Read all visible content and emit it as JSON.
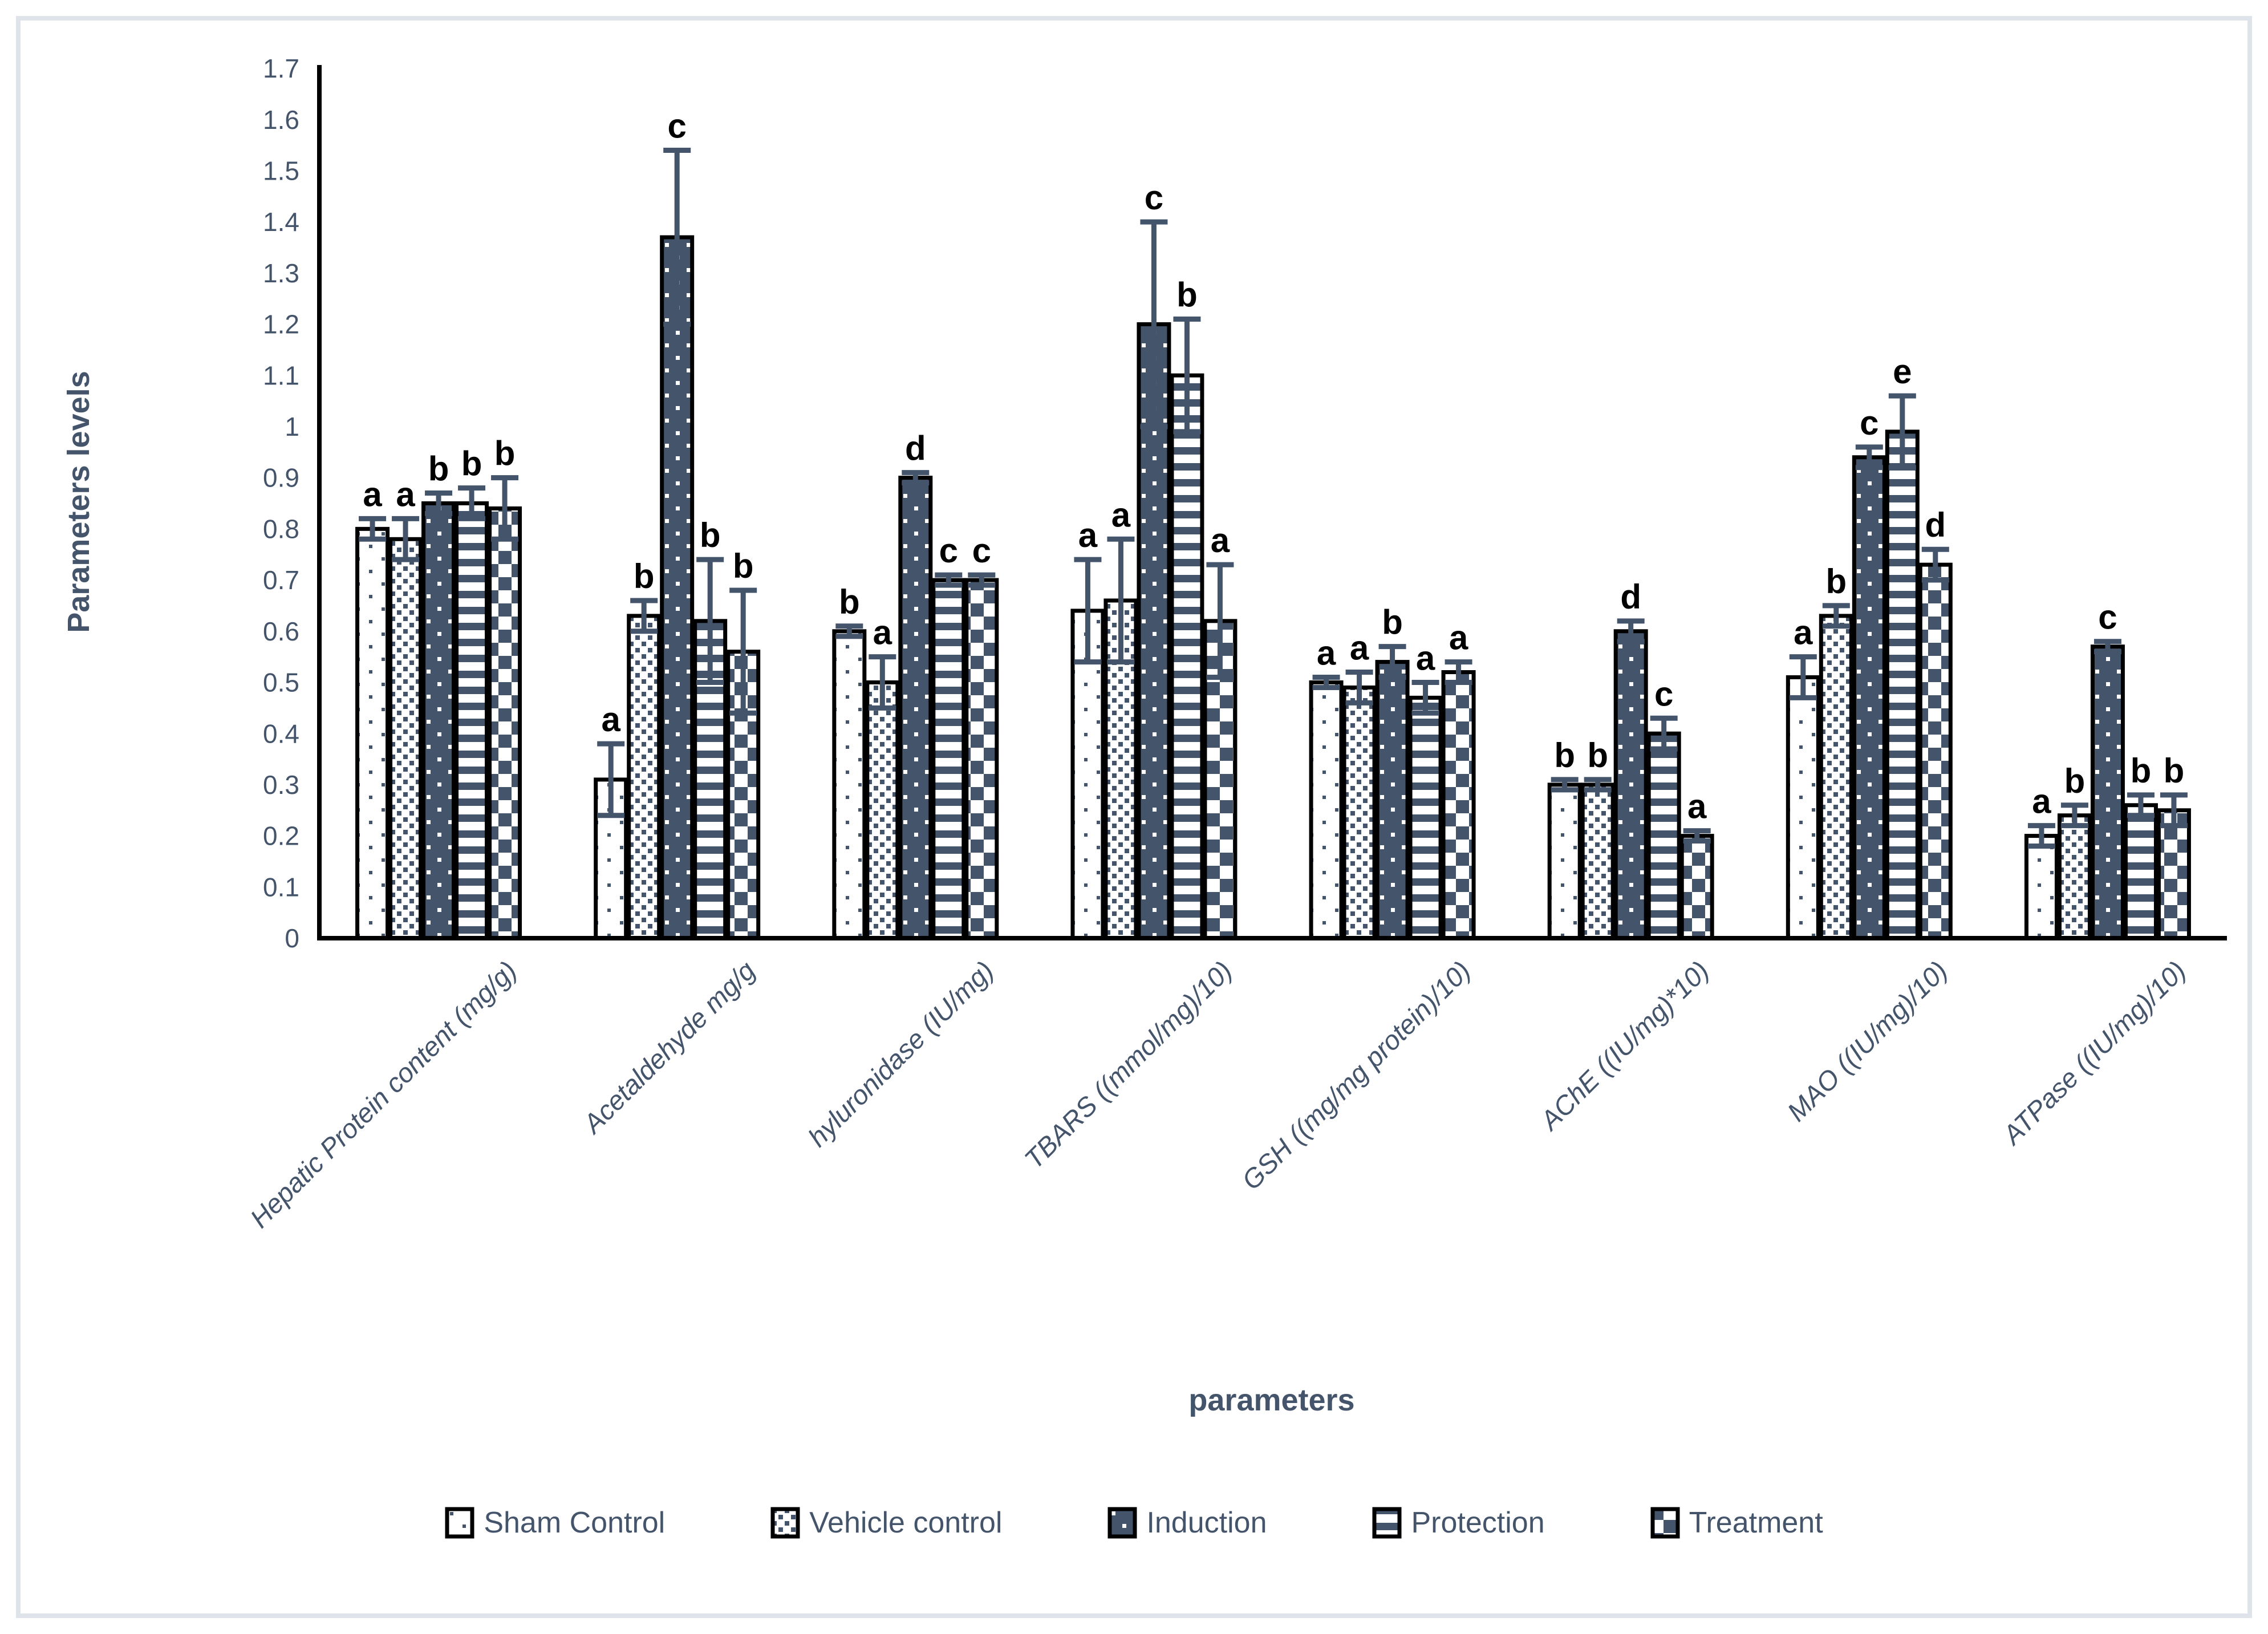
{
  "chart_data": {
    "type": "bar",
    "title": "",
    "xlabel": "parameters",
    "ylabel": "Parameters levels",
    "ylim": [
      0,
      1.7
    ],
    "ytick_step": 0.1,
    "grid": false,
    "legend_position": "bottom",
    "categories": [
      "Hepatic Protein content (mg/g)",
      "Acetaldehyde mg/g",
      "hyluronidase (IU/mg)",
      "TBARS ((mmol/mg)/10)",
      "GSH ((mg/mg protein)/10)",
      "AChE ((IU/mg)*10)",
      "MAO ((IU/mg)/10)",
      "ATPase ((IU/mg)/10)"
    ],
    "series": [
      {
        "name": "Sham Control",
        "pattern": "sparse-dots-on-white",
        "values": [
          0.8,
          0.31,
          0.6,
          0.64,
          0.5,
          0.3,
          0.51,
          0.2
        ],
        "errors": [
          0.02,
          0.07,
          0.01,
          0.1,
          0.01,
          0.01,
          0.04,
          0.02
        ],
        "letters": [
          "a",
          "a",
          "b",
          "a",
          "a",
          "b",
          "a",
          "a"
        ]
      },
      {
        "name": "Vehicle control",
        "pattern": "dense-dot-grid-on-white",
        "values": [
          0.78,
          0.63,
          0.5,
          0.66,
          0.49,
          0.3,
          0.63,
          0.24
        ],
        "errors": [
          0.04,
          0.03,
          0.05,
          0.12,
          0.03,
          0.01,
          0.02,
          0.02
        ],
        "letters": [
          "a",
          "b",
          "a",
          "a",
          "a",
          "b",
          "b",
          "b"
        ]
      },
      {
        "name": "Induction",
        "pattern": "white-dots-on-dark",
        "values": [
          0.85,
          1.37,
          0.9,
          1.2,
          0.54,
          0.6,
          0.94,
          0.57
        ],
        "errors": [
          0.02,
          0.17,
          0.01,
          0.2,
          0.03,
          0.02,
          0.02,
          0.01
        ],
        "letters": [
          "b",
          "c",
          "d",
          "c",
          "b",
          "d",
          "c",
          "c"
        ]
      },
      {
        "name": "Protection",
        "pattern": "horizontal-stripes",
        "values": [
          0.85,
          0.62,
          0.7,
          1.1,
          0.47,
          0.4,
          0.99,
          0.26
        ],
        "errors": [
          0.03,
          0.12,
          0.01,
          0.11,
          0.03,
          0.03,
          0.07,
          0.02
        ],
        "letters": [
          "b",
          "b",
          "c",
          "b",
          "a",
          "c",
          "e",
          "b"
        ]
      },
      {
        "name": "Treatment",
        "pattern": "checkerboard",
        "values": [
          0.84,
          0.56,
          0.7,
          0.62,
          0.52,
          0.2,
          0.73,
          0.25
        ],
        "errors": [
          0.06,
          0.12,
          0.01,
          0.11,
          0.02,
          0.01,
          0.03,
          0.03
        ],
        "letters": [
          "b",
          "b",
          "c",
          "a",
          "a",
          "a",
          "d",
          "b"
        ]
      }
    ]
  },
  "colors": {
    "accent": "#44546A",
    "bar_outline": "#000000",
    "error_bar": "#44546A",
    "letter": "#000000",
    "tick_label": "#44546A",
    "frame_border": "#dfe3ea",
    "background": "#ffffff"
  }
}
